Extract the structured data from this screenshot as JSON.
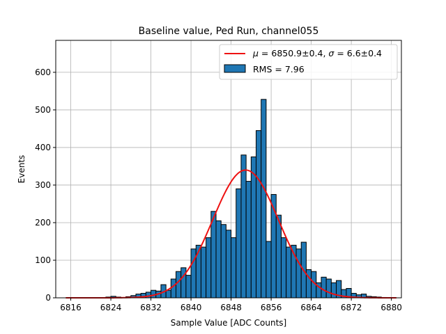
{
  "chart_data": {
    "type": "bar",
    "title": "Baseline value, Ped Run, channel055",
    "xlabel": "Sample Value [ADC Counts]",
    "ylabel": "Events",
    "xlim": [
      6813,
      6882
    ],
    "ylim": [
      0,
      685
    ],
    "xticks": [
      6816,
      6824,
      6832,
      6840,
      6848,
      6856,
      6864,
      6872,
      6880
    ],
    "yticks": [
      0,
      100,
      200,
      300,
      400,
      500,
      600
    ],
    "grid": true,
    "legend_position": "top-right",
    "bin_width": 1,
    "histogram": {
      "name": "RMS = 7.96",
      "color": "#1f77b4",
      "bins": [
        6823,
        6824,
        6825,
        6826,
        6827,
        6828,
        6829,
        6830,
        6831,
        6832,
        6833,
        6834,
        6835,
        6836,
        6837,
        6838,
        6839,
        6840,
        6841,
        6842,
        6843,
        6844,
        6845,
        6846,
        6847,
        6848,
        6849,
        6850,
        6851,
        6852,
        6853,
        6854,
        6855,
        6856,
        6857,
        6858,
        6859,
        6860,
        6861,
        6862,
        6863,
        6864,
        6865,
        6866,
        6867,
        6868,
        6869,
        6870,
        6871,
        6872,
        6873,
        6874,
        6875,
        6876,
        6877,
        6878
      ],
      "counts": [
        2,
        4,
        2,
        1,
        3,
        6,
        10,
        12,
        15,
        20,
        18,
        35,
        20,
        50,
        70,
        80,
        60,
        130,
        140,
        135,
        160,
        230,
        205,
        195,
        180,
        160,
        290,
        380,
        310,
        375,
        445,
        528,
        150,
        275,
        220,
        160,
        135,
        140,
        130,
        148,
        75,
        70,
        40,
        55,
        50,
        40,
        46,
        22,
        25,
        12,
        8,
        10,
        4,
        3,
        2,
        1
      ]
    },
    "fit": {
      "name": "$\\mu = 6850.9{\\pm}0.4$, $\\sigma = 6.6{\\pm}0.4$",
      "color": "#ee1111",
      "mu": 6850.9,
      "sigma": 6.6,
      "amplitude": 340,
      "x_range": [
        6815,
        6881
      ]
    }
  }
}
